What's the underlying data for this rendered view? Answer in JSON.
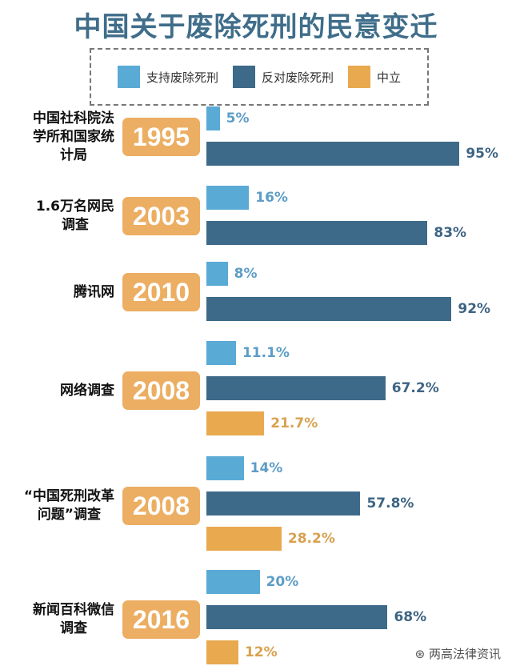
{
  "chart_data": {
    "type": "bar",
    "orientation": "horizontal",
    "title": "中国关于废除死刑的民意变迁",
    "legend": {
      "position": "top",
      "entries": [
        "支持废除死刑",
        "反对废除死刑",
        "中立"
      ]
    },
    "colors": {
      "support": "#5aaad6",
      "oppose": "#3e6a89",
      "neutral": "#e8a94f",
      "badge": "#ecae62"
    },
    "value_text_colors": {
      "support": "#5d9dc6",
      "oppose": "#3e6483",
      "neutral": "#d9a14f"
    },
    "groups": [
      {
        "source": "中国社科院法\n学所和国家统\n计局",
        "year": "1995",
        "values": [
          5,
          95,
          null
        ],
        "labels": [
          "5%",
          "95%",
          null
        ]
      },
      {
        "source": "1.6万名网民\n调查",
        "year": "2003",
        "values": [
          16,
          83,
          null
        ],
        "labels": [
          "16%",
          "83%",
          null
        ]
      },
      {
        "source": "腾讯网",
        "year": "2010",
        "values": [
          8,
          92,
          null
        ],
        "labels": [
          "8%",
          "92%",
          null
        ]
      },
      {
        "source": "网络调查",
        "year": "2008",
        "values": [
          11.1,
          67.2,
          21.7
        ],
        "labels": [
          "11.1%",
          "67.2%",
          "21.7%"
        ]
      },
      {
        "source": "“中国死刑改革\n问题”调查",
        "year": "2008",
        "values": [
          14,
          57.8,
          28.2
        ],
        "labels": [
          "14%",
          "57.8%",
          "28.2%"
        ]
      },
      {
        "source": "新闻百科微信\n调查",
        "year": "2016",
        "values": [
          20,
          68,
          12
        ],
        "labels": [
          "20%",
          "68%",
          "12%"
        ]
      }
    ]
  },
  "watermark": "两高法律资讯"
}
